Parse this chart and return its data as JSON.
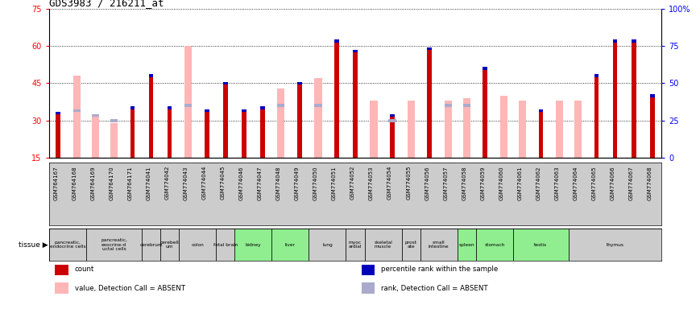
{
  "title": "GDS3983 / 216211_at",
  "ylim_left": [
    15,
    75
  ],
  "ylim_right": [
    0,
    100
  ],
  "yticks_left": [
    15,
    30,
    45,
    60,
    75
  ],
  "yticks_right": [
    0,
    25,
    50,
    75,
    100
  ],
  "ytick_labels_right": [
    "0",
    "25",
    "50",
    "75",
    "100%"
  ],
  "samples": [
    "GSM764167",
    "GSM764168",
    "GSM764169",
    "GSM764170",
    "GSM764171",
    "GSM774041",
    "GSM774042",
    "GSM774043",
    "GSM774044",
    "GSM774045",
    "GSM774046",
    "GSM774047",
    "GSM774048",
    "GSM774049",
    "GSM774050",
    "GSM774051",
    "GSM774052",
    "GSM774053",
    "GSM774054",
    "GSM774055",
    "GSM774056",
    "GSM774057",
    "GSM774058",
    "GSM774059",
    "GSM774060",
    "GSM774061",
    "GSM774062",
    "GSM774063",
    "GSM774064",
    "GSM774065",
    "GSM774066",
    "GSM774067",
    "GSM774068"
  ],
  "red_values": [
    33,
    null,
    null,
    null,
    35,
    48,
    35,
    null,
    34,
    45,
    34,
    35,
    null,
    45,
    null,
    62,
    58,
    null,
    32,
    null,
    59,
    null,
    null,
    51,
    null,
    null,
    34,
    null,
    null,
    48,
    62,
    62,
    40
  ],
  "pink_values": [
    null,
    48,
    32,
    29,
    null,
    null,
    null,
    60,
    null,
    null,
    null,
    null,
    43,
    null,
    47,
    null,
    null,
    38,
    null,
    38,
    null,
    38,
    39,
    null,
    40,
    38,
    null,
    38,
    38,
    null,
    null,
    null,
    null
  ],
  "blue_values": [
    33,
    null,
    null,
    null,
    35,
    48,
    35,
    null,
    34,
    45,
    34,
    35,
    null,
    45,
    null,
    62,
    58,
    null,
    32,
    null,
    59,
    null,
    null,
    51,
    null,
    null,
    34,
    null,
    null,
    48,
    62,
    62,
    40
  ],
  "lightblue_values": [
    null,
    34,
    32,
    30,
    null,
    null,
    null,
    36,
    null,
    null,
    null,
    null,
    36,
    null,
    36,
    null,
    null,
    null,
    30,
    null,
    null,
    36,
    36,
    null,
    null,
    null,
    null,
    null,
    null,
    null,
    null,
    null,
    null
  ],
  "tissue_groups": [
    {
      "start": 0,
      "end": 1,
      "color": "#cccccc",
      "label": "pancreatic,\nendocrine cells"
    },
    {
      "start": 2,
      "end": 4,
      "color": "#cccccc",
      "label": "pancreatic,\nexocrine-d\nuctal cells"
    },
    {
      "start": 5,
      "end": 5,
      "color": "#cccccc",
      "label": "cerebrum"
    },
    {
      "start": 6,
      "end": 6,
      "color": "#cccccc",
      "label": "cerebell\num"
    },
    {
      "start": 7,
      "end": 8,
      "color": "#cccccc",
      "label": "colon"
    },
    {
      "start": 9,
      "end": 9,
      "color": "#cccccc",
      "label": "fetal brain"
    },
    {
      "start": 10,
      "end": 11,
      "color": "#90ee90",
      "label": "kidney"
    },
    {
      "start": 12,
      "end": 13,
      "color": "#90ee90",
      "label": "liver"
    },
    {
      "start": 14,
      "end": 15,
      "color": "#cccccc",
      "label": "lung"
    },
    {
      "start": 16,
      "end": 16,
      "color": "#cccccc",
      "label": "myoc\nardial"
    },
    {
      "start": 17,
      "end": 18,
      "color": "#cccccc",
      "label": "skeletal\nmuscle"
    },
    {
      "start": 19,
      "end": 19,
      "color": "#cccccc",
      "label": "prost\nate"
    },
    {
      "start": 20,
      "end": 21,
      "color": "#cccccc",
      "label": "small\nintestine"
    },
    {
      "start": 22,
      "end": 22,
      "color": "#90ee90",
      "label": "spleen"
    },
    {
      "start": 23,
      "end": 24,
      "color": "#90ee90",
      "label": "stomach"
    },
    {
      "start": 25,
      "end": 27,
      "color": "#90ee90",
      "label": "testis"
    },
    {
      "start": 28,
      "end": 32,
      "color": "#cccccc",
      "label": "thymus"
    }
  ],
  "bar_width": 0.25,
  "pink_bar_width": 0.4,
  "red_color": "#cc0000",
  "pink_color": "#ffb6b6",
  "blue_color": "#0000bb",
  "lightblue_color": "#aaaacc",
  "background_color": "#ffffff",
  "grid_color": "#000000",
  "gsm_bg_color": "#cccccc"
}
